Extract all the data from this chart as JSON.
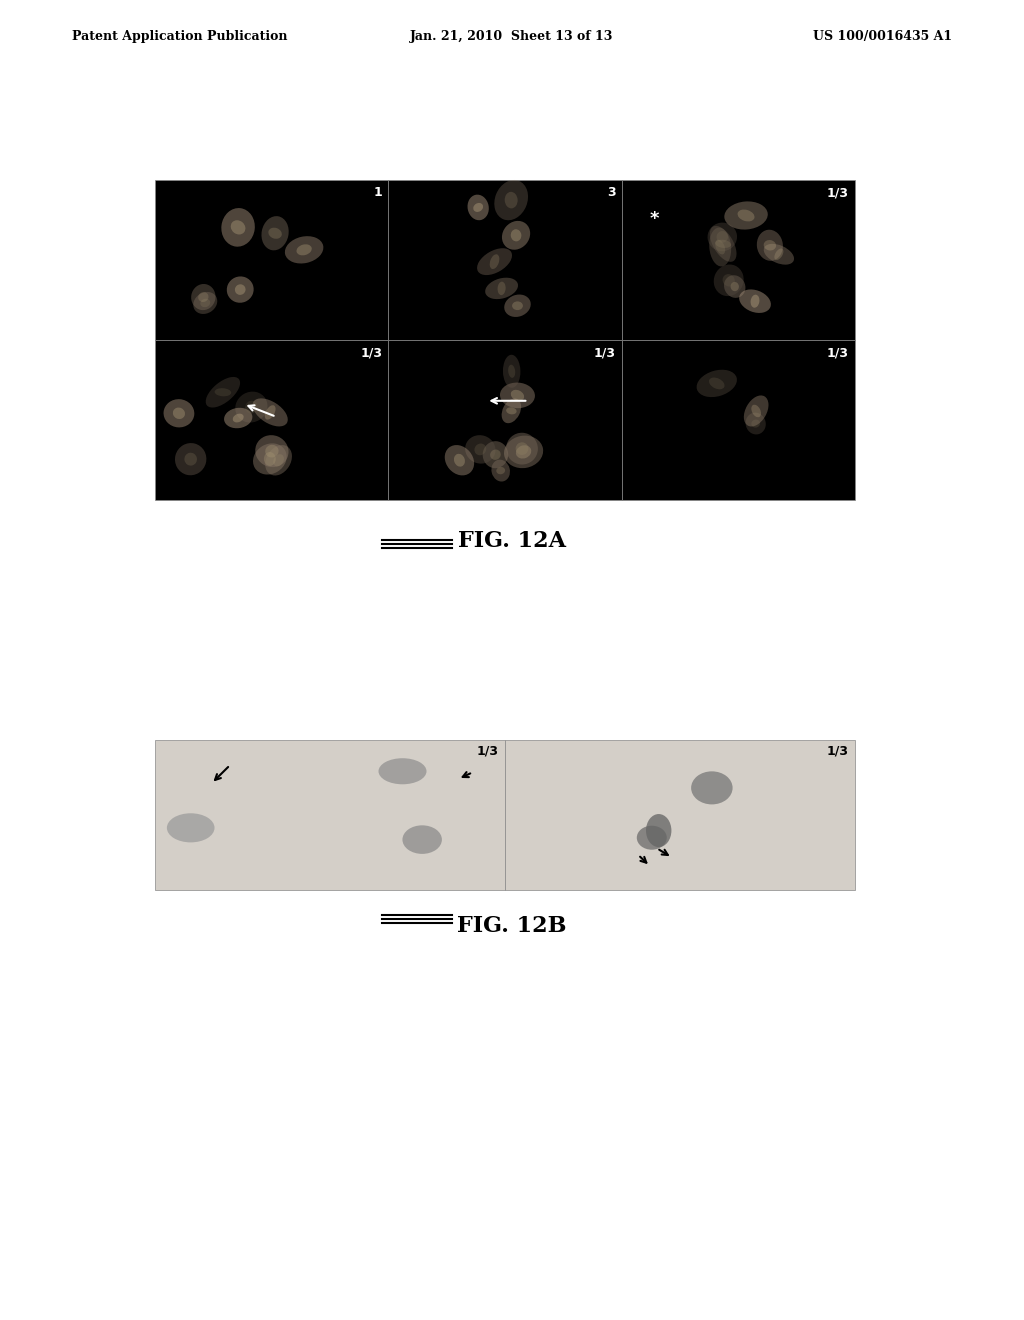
{
  "background_color": "#ffffff",
  "header_left": "Patent Application Publication",
  "header_center": "Jan. 21, 2010  Sheet 13 of 13",
  "header_right": "US 100/0016435 A1",
  "fig12a_label": "FIG. 12A",
  "fig12b_label": "FIG. 12B",
  "grid_top_labels": [
    "1",
    "3",
    "1/3"
  ],
  "grid_bottom_labels": [
    "1/3",
    "1/3",
    "1/3"
  ],
  "panel_bg_top": "#000000",
  "panel_bg_bottom": "#c8c8c8"
}
